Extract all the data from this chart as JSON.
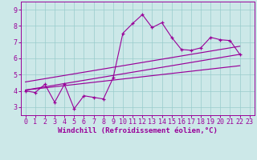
{
  "xlabel": "Windchill (Refroidissement éolien,°C)",
  "bg_color": "#cce8e8",
  "line_color": "#990099",
  "grid_color": "#99cccc",
  "xlim": [
    -0.5,
    23.5
  ],
  "ylim": [
    2.5,
    9.5
  ],
  "yticks": [
    3,
    4,
    5,
    6,
    7,
    8,
    9
  ],
  "xticks": [
    0,
    1,
    2,
    3,
    4,
    5,
    6,
    7,
    8,
    9,
    10,
    11,
    12,
    13,
    14,
    15,
    16,
    17,
    18,
    19,
    20,
    21,
    22,
    23
  ],
  "data_x": [
    0,
    1,
    2,
    3,
    4,
    5,
    6,
    7,
    8,
    9,
    10,
    11,
    12,
    13,
    14,
    15,
    16,
    17,
    18,
    19,
    20,
    21,
    22
  ],
  "data_y": [
    4.0,
    3.9,
    4.4,
    3.3,
    4.4,
    2.9,
    3.7,
    3.6,
    3.5,
    4.8,
    7.55,
    8.15,
    8.7,
    7.9,
    8.2,
    7.3,
    6.55,
    6.5,
    6.65,
    7.3,
    7.15,
    7.1,
    6.25
  ],
  "trend1_x": [
    0,
    22
  ],
  "trend1_y": [
    4.05,
    6.25
  ],
  "trend2_x": [
    0,
    22
  ],
  "trend2_y": [
    4.55,
    6.75
  ],
  "trend3_x": [
    0,
    22
  ],
  "trend3_y": [
    4.05,
    5.55
  ],
  "xlabel_fontsize": 6.5,
  "tick_fontsize": 6.0
}
